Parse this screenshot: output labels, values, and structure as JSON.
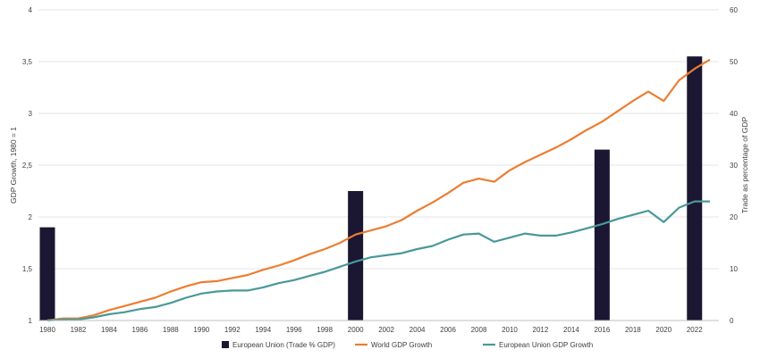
{
  "chart_data": {
    "type": "bar+line",
    "title": "",
    "y_left": {
      "label": "GDP Growth, 1980 = 1",
      "range": [
        1,
        4
      ],
      "ticks": [
        "1",
        "1,5",
        "2",
        "2,5",
        "3",
        "3,5",
        "4"
      ],
      "tick_values": [
        1,
        1.5,
        2,
        2.5,
        3,
        3.5,
        4
      ]
    },
    "y_right": {
      "label": "Trade as percentage of GDP",
      "range": [
        0,
        60
      ],
      "ticks": [
        "0",
        "10",
        "20",
        "30",
        "40",
        "50",
        "60"
      ],
      "tick_values": [
        0,
        10,
        20,
        30,
        40,
        50,
        60
      ]
    },
    "x": {
      "range": [
        1980,
        2023
      ],
      "tick_labels": [
        "1980",
        "1982",
        "1984",
        "1986",
        "1988",
        "1990",
        "1992",
        "1994",
        "1996",
        "1998",
        "2000",
        "2002",
        "2004",
        "2006",
        "2008",
        "2010",
        "2012",
        "2014",
        "2016",
        "2018",
        "2020",
        "2022"
      ]
    },
    "grid": true,
    "legend": "bottom",
    "series": [
      {
        "name": "European Union (Trade % GDP)",
        "kind": "bar",
        "axis": "right",
        "color": "#1b1631",
        "x": [
          1980,
          2000,
          2016,
          2022
        ],
        "values": [
          18,
          25,
          33,
          51
        ]
      },
      {
        "name": "World GDP Growth",
        "kind": "line",
        "axis": "left",
        "color": "#ed7d31",
        "x": [
          1980,
          1981,
          1982,
          1983,
          1984,
          1985,
          1986,
          1987,
          1988,
          1989,
          1990,
          1991,
          1992,
          1993,
          1994,
          1995,
          1996,
          1997,
          1998,
          1999,
          2000,
          2001,
          2002,
          2003,
          2004,
          2005,
          2006,
          2007,
          2008,
          2009,
          2010,
          2011,
          2012,
          2013,
          2014,
          2015,
          2016,
          2017,
          2018,
          2019,
          2020,
          2021,
          2022,
          2023
        ],
        "values": [
          1.0,
          1.02,
          1.02,
          1.05,
          1.1,
          1.14,
          1.18,
          1.22,
          1.28,
          1.33,
          1.37,
          1.38,
          1.41,
          1.44,
          1.49,
          1.53,
          1.58,
          1.64,
          1.69,
          1.75,
          1.83,
          1.87,
          1.91,
          1.97,
          2.06,
          2.14,
          2.23,
          2.33,
          2.37,
          2.34,
          2.45,
          2.53,
          2.6,
          2.67,
          2.75,
          2.84,
          2.92,
          3.02,
          3.12,
          3.21,
          3.12,
          3.32,
          3.43,
          3.52
        ]
      },
      {
        "name": "European Union GDP Growth",
        "kind": "line",
        "axis": "left",
        "color": "#4a9898",
        "x": [
          1980,
          1981,
          1982,
          1983,
          1984,
          1985,
          1986,
          1987,
          1988,
          1989,
          1990,
          1991,
          1992,
          1993,
          1994,
          1995,
          1996,
          1997,
          1998,
          1999,
          2000,
          2001,
          2002,
          2003,
          2004,
          2005,
          2006,
          2007,
          2008,
          2009,
          2010,
          2011,
          2012,
          2013,
          2014,
          2015,
          2016,
          2017,
          2018,
          2019,
          2020,
          2021,
          2022,
          2023
        ],
        "values": [
          1.0,
          1.01,
          1.01,
          1.03,
          1.06,
          1.08,
          1.11,
          1.13,
          1.17,
          1.22,
          1.26,
          1.28,
          1.29,
          1.29,
          1.32,
          1.36,
          1.39,
          1.43,
          1.47,
          1.52,
          1.57,
          1.61,
          1.63,
          1.65,
          1.69,
          1.72,
          1.78,
          1.83,
          1.84,
          1.76,
          1.8,
          1.84,
          1.82,
          1.82,
          1.85,
          1.89,
          1.93,
          1.98,
          2.02,
          2.06,
          1.95,
          2.09,
          2.15,
          2.15
        ]
      }
    ]
  }
}
